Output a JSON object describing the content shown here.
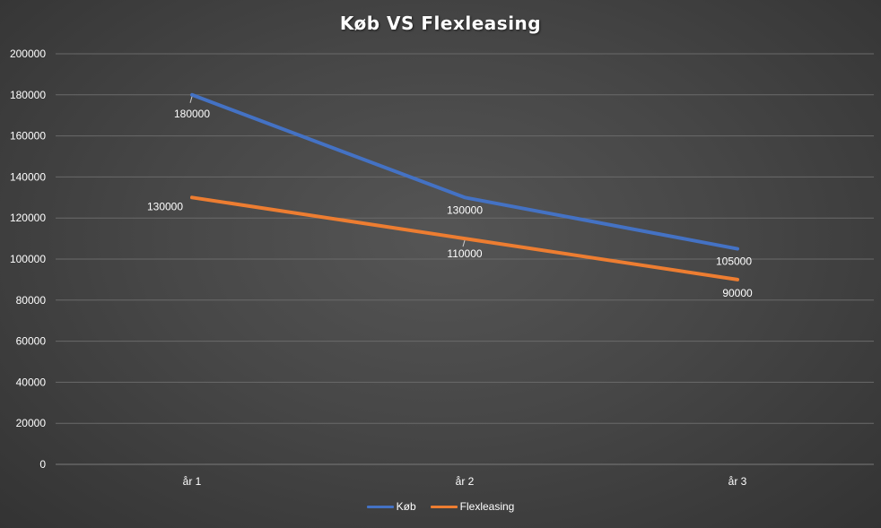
{
  "colors": {
    "kob": "#4472c4",
    "flexleasing": "#ed7d31",
    "grid": "#6a6a6a",
    "text": "#ffffff"
  },
  "chart_data": {
    "type": "line",
    "title": "Køb VS Flexleasing",
    "xlabel": "",
    "ylabel": "",
    "categories": [
      "år 1",
      "år 2",
      "år 3"
    ],
    "ylim": [
      0,
      200000
    ],
    "yticks": [
      0,
      20000,
      40000,
      60000,
      80000,
      100000,
      120000,
      140000,
      160000,
      180000,
      200000
    ],
    "grid": true,
    "legend_position": "bottom",
    "series": [
      {
        "name": "Køb",
        "color": "#4472c4",
        "values": [
          180000,
          130000,
          105000
        ],
        "labels": [
          "180000",
          "130000",
          "105000"
        ]
      },
      {
        "name": "Flexleasing",
        "color": "#ed7d31",
        "values": [
          130000,
          110000,
          90000
        ],
        "labels": [
          "130000",
          "110000",
          "90000"
        ]
      }
    ]
  }
}
